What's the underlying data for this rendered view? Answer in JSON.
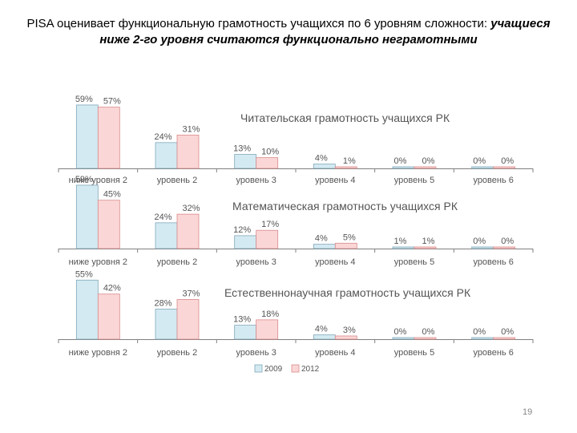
{
  "slide": {
    "title_plain": "PISA оценивает функциональную грамотность учащихся по 6 уровням сложности: ",
    "title_emphasis": "учащиеся ниже 2-го уровня считаются функционально неграмотными",
    "page_number": "19"
  },
  "colors": {
    "series_2009": "#d4eaf2",
    "series_2009_border": "#7fa7b8",
    "series_2012": "#fbd6d6",
    "series_2012_border": "#d98b8b",
    "axis": "#808080",
    "text_gray": "#555555"
  },
  "legend": {
    "labels": [
      "2009",
      "2012"
    ],
    "position": "bottom"
  },
  "chart_data": [
    {
      "type": "bar",
      "title": "Читательская грамотность учащихся РК",
      "categories": [
        "ниже уровня 2",
        "уровень 2",
        "уровень 3",
        "уровень 4",
        "уровень 5",
        "уровень 6"
      ],
      "series": [
        {
          "name": "2009",
          "values": [
            59,
            24,
            13,
            4,
            0,
            0
          ]
        },
        {
          "name": "2012",
          "values": [
            57,
            31,
            10,
            1,
            0,
            0
          ]
        }
      ],
      "ylim": [
        0,
        60
      ]
    },
    {
      "type": "bar",
      "title": "Математическая грамотность учащихся РК",
      "categories": [
        "ниже уровня 2",
        "уровень 2",
        "уровень 3",
        "уровень 4",
        "уровень 5",
        "уровень 6"
      ],
      "series": [
        {
          "name": "2009",
          "values": [
            59,
            24,
            12,
            4,
            1,
            0
          ]
        },
        {
          "name": "2012",
          "values": [
            45,
            32,
            17,
            5,
            1,
            0
          ]
        }
      ],
      "ylim": [
        0,
        60
      ]
    },
    {
      "type": "bar",
      "title": "Естественнонаучная грамотность учащихся РК",
      "categories": [
        "ниже уровня 2",
        "уровень 2",
        "уровень 3",
        "уровень 4",
        "уровень 5",
        "уровень 6"
      ],
      "series": [
        {
          "name": "2009",
          "values": [
            55,
            28,
            13,
            4,
            0,
            0
          ]
        },
        {
          "name": "2012",
          "values": [
            42,
            37,
            18,
            3,
            0,
            0
          ]
        }
      ],
      "ylim": [
        0,
        60
      ]
    }
  ]
}
